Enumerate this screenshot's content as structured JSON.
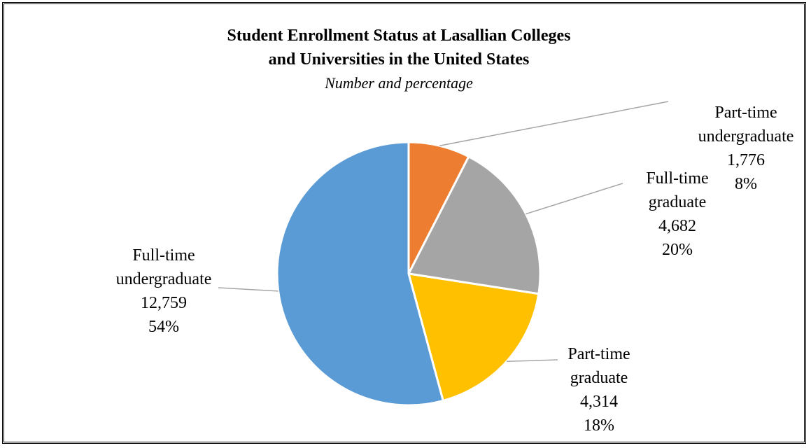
{
  "chart_data": {
    "type": "pie",
    "title": "Student Enrollment Status at Lasallian Colleges and Universities in the United States",
    "title_lines": [
      "Student Enrollment Status at Lasallian Colleges",
      "and Universities in the United States"
    ],
    "subtitle": "Number and percentage",
    "start_angle_deg": 0,
    "direction": "clockwise",
    "slices": [
      {
        "name": "Part-time undergraduate",
        "name_lines": [
          "Part-time",
          "undergraduate"
        ],
        "value": 1776,
        "value_label": "1,776",
        "percent_label": "8%",
        "color": "#ed7d31"
      },
      {
        "name": "Full-time graduate",
        "name_lines": [
          "Full-time",
          "graduate"
        ],
        "value": 4682,
        "value_label": "4,682",
        "percent_label": "20%",
        "color": "#a5a5a5"
      },
      {
        "name": "Part-time graduate",
        "name_lines": [
          "Part-time",
          "graduate"
        ],
        "value": 4314,
        "value_label": "4,314",
        "percent_label": "18%",
        "color": "#ffc000"
      },
      {
        "name": "Full-time undergraduate",
        "name_lines": [
          "Full-time",
          "undergraduate"
        ],
        "value": 12759,
        "value_label": "12,759",
        "percent_label": "54%",
        "color": "#5b9bd5"
      }
    ],
    "leader_line_color": "#a6a6a6"
  }
}
